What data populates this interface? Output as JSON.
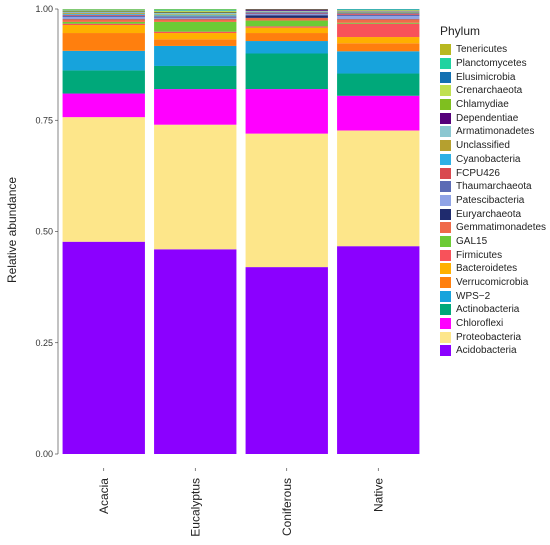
{
  "chart_data": {
    "type": "bar",
    "stacked": true,
    "ylabel": "Relative abundance",
    "ylim": [
      0,
      1
    ],
    "yticks": [
      "0.00",
      "0.25",
      "0.50",
      "0.75",
      "1.00"
    ],
    "ytick_values": [
      0,
      0.25,
      0.5,
      0.75,
      1.0
    ],
    "categories": [
      "Acacia",
      "Eucalyptus",
      "Coniferous",
      "Native"
    ],
    "legend_title": "Phylum",
    "legend_placement": "right",
    "grid": false,
    "series": [
      {
        "name": "Acidobacteria",
        "color": "#8B00FF",
        "values": [
          0.477,
          0.46,
          0.42,
          0.467
        ]
      },
      {
        "name": "Proteobacteria",
        "color": "#FDE68A",
        "values": [
          0.28,
          0.28,
          0.3,
          0.26
        ]
      },
      {
        "name": "Chloroflexi",
        "color": "#FF00FF",
        "values": [
          0.053,
          0.08,
          0.1,
          0.078
        ]
      },
      {
        "name": "Actinobacteria",
        "color": "#00A87A",
        "values": [
          0.052,
          0.052,
          0.08,
          0.05
        ]
      },
      {
        "name": "WPS−2",
        "color": "#17A3DC",
        "values": [
          0.044,
          0.045,
          0.028,
          0.05
        ]
      },
      {
        "name": "Verrucomicrobia",
        "color": "#FF7F0E",
        "values": [
          0.04,
          0.015,
          0.018,
          0.018
        ]
      },
      {
        "name": "Bacteroidetes",
        "color": "#FFB000",
        "values": [
          0.018,
          0.014,
          0.012,
          0.014
        ]
      },
      {
        "name": "Firmicutes",
        "color": "#F8525A",
        "values": [
          0.003,
          0.003,
          0.003,
          0.03
        ]
      },
      {
        "name": "GAL15",
        "color": "#6CCB35",
        "values": [
          0.004,
          0.022,
          0.013,
          0.002
        ]
      },
      {
        "name": "Gemmatimonadetes",
        "color": "#F06A48",
        "values": [
          0.006,
          0.006,
          0.006,
          0.008
        ]
      },
      {
        "name": "Euryarchaeota",
        "color": "#1F2B6E",
        "values": [
          0.001,
          0.001,
          0.006,
          0.001
        ]
      },
      {
        "name": "Patescibacteria",
        "color": "#8FA3E6",
        "values": [
          0.004,
          0.002,
          0.002,
          0.006
        ]
      },
      {
        "name": "Thaumarchaeota",
        "color": "#5B6BB5",
        "values": [
          0.003,
          0.002,
          0.002,
          0.003
        ]
      },
      {
        "name": "FCPU426",
        "color": "#D9484F",
        "values": [
          0.002,
          0.001,
          0.002,
          0.003
        ]
      },
      {
        "name": "Cyanobacteria",
        "color": "#2DB0E5",
        "values": [
          0.002,
          0.003,
          0.002,
          0.002
        ]
      },
      {
        "name": "Unclassified",
        "color": "#B5A02F",
        "values": [
          0.002,
          0.002,
          0.001,
          0.002
        ]
      },
      {
        "name": "Armatimonadetes",
        "color": "#8BC7D1",
        "values": [
          0.002,
          0.003,
          0.001,
          0.001
        ]
      },
      {
        "name": "Dependentiae",
        "color": "#55007A",
        "values": [
          0.001,
          0.001,
          0.003,
          0.001
        ]
      },
      {
        "name": "Chlamydiae",
        "color": "#7FBF1F",
        "values": [
          0.002,
          0.002,
          0.002,
          0.001
        ]
      },
      {
        "name": "Crenarchaeota",
        "color": "#C0E050",
        "values": [
          0.001,
          0.002,
          0.001,
          0.001
        ]
      },
      {
        "name": "Elusimicrobia",
        "color": "#1270B2",
        "values": [
          0.001,
          0.001,
          0.001,
          0.001
        ]
      },
      {
        "name": "Planctomycetes",
        "color": "#20D3A0",
        "values": [
          0.001,
          0.002,
          0.002,
          0.002
        ]
      },
      {
        "name": "Tenericutes",
        "color": "#B8B820",
        "values": [
          0.001,
          0.002,
          0.002,
          0.001
        ]
      }
    ]
  }
}
